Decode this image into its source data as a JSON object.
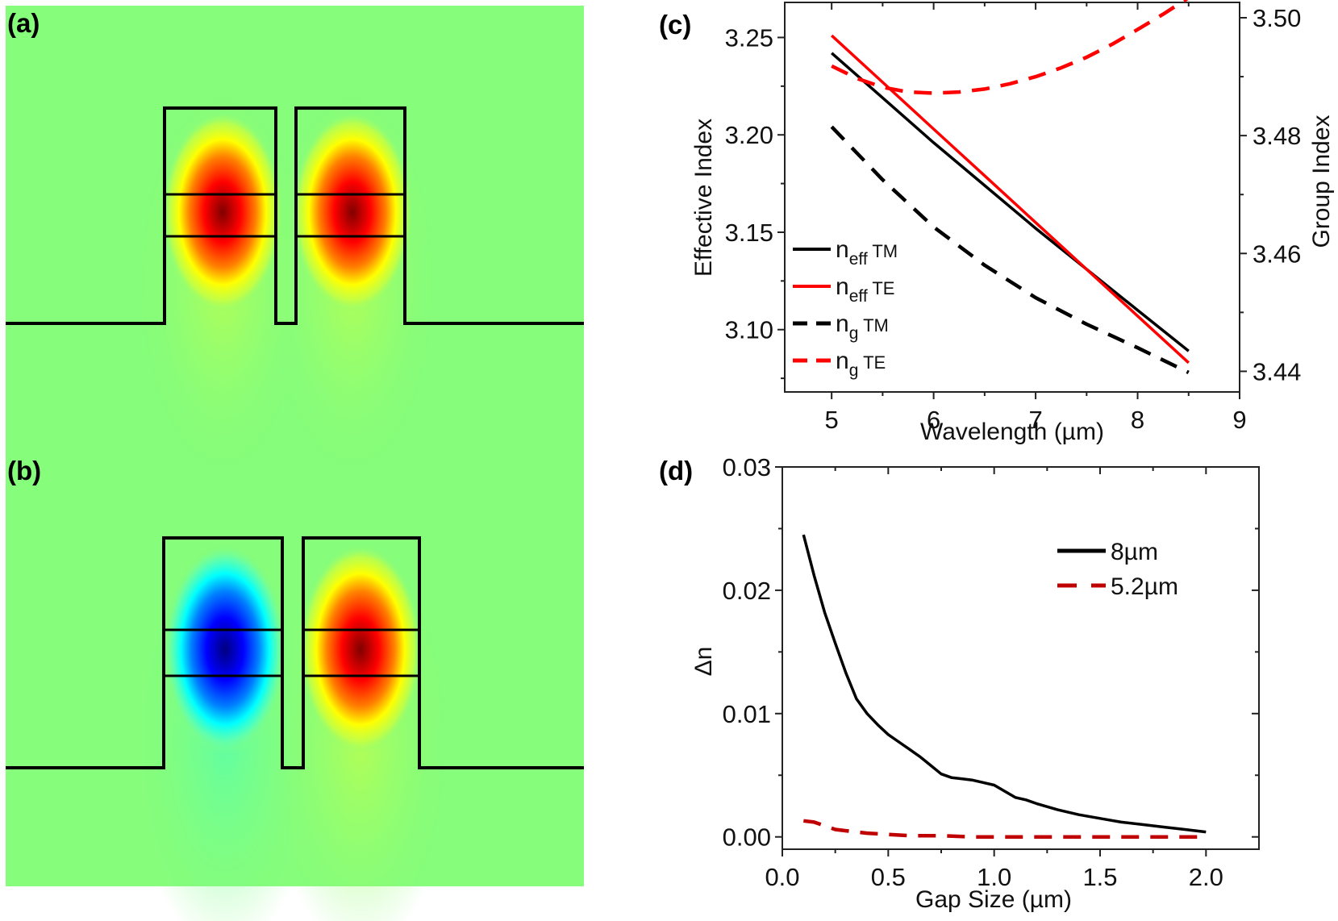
{
  "panels": {
    "a": {
      "label": "(a)",
      "description": "Symmetric supermode field distribution",
      "lobes": [
        {
          "sign": "positive"
        },
        {
          "sign": "positive"
        }
      ]
    },
    "b": {
      "label": "(b)",
      "description": "Antisymmetric supermode field distribution",
      "lobes": [
        {
          "sign": "negative"
        },
        {
          "sign": "positive"
        }
      ]
    },
    "c": {
      "label": "(c)"
    },
    "d": {
      "label": "(d)"
    }
  },
  "colors": {
    "background_field": "#86fd7b",
    "neff_TM": "#000000",
    "neff_TE": "#ff0000",
    "ng_TM": "#000000",
    "ng_TE": "#ff0000",
    "gap_8um": "#000000",
    "gap_5_2um": "#c00000"
  },
  "chart_data": [
    {
      "id": "c",
      "type": "line",
      "title": "",
      "xlabel": "Wavelength (µm)",
      "ylabel": "Effective Index",
      "y2label": "Group Index",
      "xlim": [
        4.54,
        9
      ],
      "ylim": [
        3.068,
        3.268
      ],
      "y2lim": [
        3.4365,
        3.5026
      ],
      "xticks": [
        5,
        6,
        7,
        8,
        9
      ],
      "xtick_labels": [
        "5",
        "6",
        "7",
        "8",
        "9"
      ],
      "yticks": [
        3.1,
        3.15,
        3.2,
        3.25
      ],
      "ytick_labels": [
        "3.10",
        "3.15",
        "3.20",
        "3.25"
      ],
      "y2ticks": [
        3.44,
        3.46,
        3.48,
        3.5
      ],
      "y2tick_labels": [
        "3.44",
        "3.46",
        "3.48",
        "3.50"
      ],
      "grid": false,
      "legend_position": "left-middle",
      "series": [
        {
          "name": "neff TM",
          "label_main": "n",
          "label_sub": "eff",
          "label_suffix": " TM",
          "axis": "left",
          "style": "solid",
          "color": "#000000",
          "x": [
            5.0,
            5.5,
            6.0,
            6.5,
            7.0,
            7.5,
            8.0,
            8.5
          ],
          "y": [
            3.242,
            3.219,
            3.196,
            3.174,
            3.152,
            3.131,
            3.11,
            3.089
          ]
        },
        {
          "name": "neff TE",
          "label_main": "n",
          "label_sub": "eff",
          "label_suffix": " TE",
          "axis": "left",
          "style": "solid",
          "color": "#ff0000",
          "x": [
            5.0,
            5.5,
            6.0,
            6.5,
            7.0,
            7.5,
            8.0,
            8.5
          ],
          "y": [
            3.251,
            3.227,
            3.203,
            3.179,
            3.155,
            3.131,
            3.107,
            3.083
          ]
        },
        {
          "name": "ng TM",
          "label_main": "n",
          "label_sub": "g",
          "label_suffix": " TM",
          "axis": "right",
          "style": "dashed",
          "color": "#000000",
          "x": [
            5.0,
            5.5,
            6.0,
            6.5,
            7.0,
            7.5,
            8.0,
            8.5
          ],
          "y": [
            3.4815,
            3.4725,
            3.4645,
            3.458,
            3.4525,
            3.448,
            3.444,
            3.4398
          ]
        },
        {
          "name": "ng TE",
          "label_main": "n",
          "label_sub": "g",
          "label_suffix": " TE",
          "axis": "right",
          "style": "dashed",
          "color": "#ff0000",
          "x": [
            5.0,
            5.25,
            5.5,
            5.75,
            6.0,
            6.25,
            6.5,
            6.75,
            7.0,
            7.25,
            7.5,
            7.75,
            8.0,
            8.25,
            8.5
          ],
          "y": [
            3.4918,
            3.4897,
            3.4882,
            3.4874,
            3.4872,
            3.4874,
            3.4879,
            3.4888,
            3.49,
            3.4915,
            3.4933,
            3.4955,
            3.498,
            3.5006,
            3.5034
          ]
        }
      ]
    },
    {
      "id": "d",
      "type": "line",
      "title": "",
      "xlabel": "Gap Size (µm)",
      "ylabel": "Δn",
      "xlim": [
        0,
        2.25
      ],
      "ylim": [
        -0.001,
        0.03
      ],
      "xticks": [
        0.0,
        0.5,
        1.0,
        1.5,
        2.0
      ],
      "xtick_labels": [
        "0.0",
        "0.5",
        "1.0",
        "1.5",
        "2.0"
      ],
      "yticks": [
        0.0,
        0.01,
        0.02,
        0.03
      ],
      "ytick_labels": [
        "0.00",
        "0.01",
        "0.02",
        "0.03"
      ],
      "grid": false,
      "legend_position": "top-right",
      "series": [
        {
          "name": "8µm",
          "style": "solid",
          "color": "#000000",
          "x": [
            0.1,
            0.15,
            0.2,
            0.25,
            0.3,
            0.35,
            0.4,
            0.45,
            0.5,
            0.55,
            0.6,
            0.65,
            0.7,
            0.75,
            0.8,
            0.85,
            0.9,
            0.95,
            1.0,
            1.05,
            1.1,
            1.15,
            1.2,
            1.3,
            1.4,
            1.5,
            1.6,
            1.7,
            1.8,
            1.9,
            2.0
          ],
          "y": [
            0.0245,
            0.0212,
            0.0182,
            0.0157,
            0.0133,
            0.0112,
            0.01,
            0.0091,
            0.0083,
            0.0077,
            0.0071,
            0.0065,
            0.0058,
            0.0051,
            0.0048,
            0.0047,
            0.0046,
            0.0044,
            0.0042,
            0.0037,
            0.0032,
            0.003,
            0.0027,
            0.0022,
            0.0018,
            0.0015,
            0.0012,
            0.001,
            0.0008,
            0.0006,
            0.0004
          ]
        },
        {
          "name": "5.2µm",
          "style": "dashed",
          "color": "#c00000",
          "x": [
            0.1,
            0.15,
            0.25,
            0.3,
            0.4,
            0.5,
            0.6,
            0.75,
            0.9,
            1.0,
            1.25,
            1.5,
            1.75,
            2.0
          ],
          "y": [
            0.0013,
            0.0012,
            0.0006,
            0.0005,
            0.0003,
            0.0002,
            0.0001,
            0.0001,
            0.0,
            0.0,
            0.0,
            0.0,
            0.0,
            0.0
          ]
        }
      ]
    }
  ]
}
